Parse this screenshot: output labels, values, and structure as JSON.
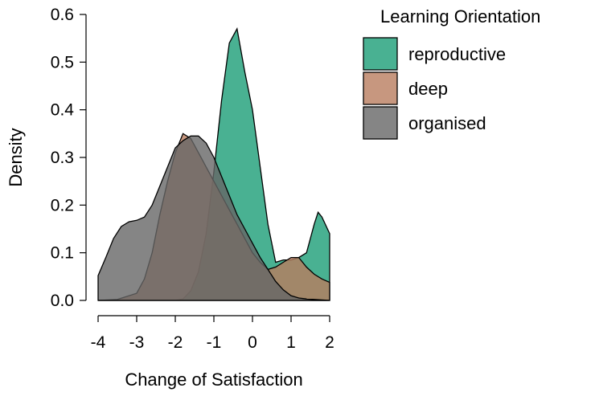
{
  "chart_data": {
    "type": "area",
    "xlabel": "Change of Satisfaction",
    "ylabel": "Density",
    "xlim": [
      -4,
      2
    ],
    "ylim": [
      0,
      0.6
    ],
    "xticks": [
      -4,
      -3,
      -2,
      -1,
      0,
      1,
      2
    ],
    "yticks": [
      0.0,
      0.1,
      0.2,
      0.3,
      0.4,
      0.5,
      0.6
    ],
    "xtick_labels": [
      "-4",
      "-3",
      "-2",
      "-1",
      "0",
      "1",
      "2"
    ],
    "ytick_labels": [
      "0.0",
      "0.1",
      "0.2",
      "0.3",
      "0.4",
      "0.5",
      "0.6"
    ],
    "grid": false,
    "legend": {
      "title": "Learning Orientation",
      "placement": "right"
    },
    "series": [
      {
        "name": "reproductive",
        "color": "#1b9e77",
        "x": [
          -4.0,
          -3.5,
          -3.0,
          -2.5,
          -2.0,
          -1.8,
          -1.6,
          -1.4,
          -1.2,
          -1.0,
          -0.8,
          -0.6,
          -0.4,
          -0.2,
          0.0,
          0.2,
          0.4,
          0.6,
          0.8,
          1.0,
          1.2,
          1.4,
          1.6,
          1.7,
          1.8,
          2.0
        ],
        "y": [
          0.0,
          0.0,
          0.0,
          0.0,
          0.0,
          0.003,
          0.02,
          0.06,
          0.14,
          0.27,
          0.42,
          0.54,
          0.57,
          0.48,
          0.4,
          0.28,
          0.16,
          0.08,
          0.085,
          0.085,
          0.09,
          0.1,
          0.16,
          0.185,
          0.175,
          0.14
        ]
      },
      {
        "name": "deep",
        "color": "#b97d5f",
        "x": [
          -4.0,
          -3.5,
          -3.0,
          -2.8,
          -2.6,
          -2.4,
          -2.2,
          -2.0,
          -1.8,
          -1.6,
          -1.4,
          -1.2,
          -1.0,
          -0.8,
          -0.6,
          -0.4,
          -0.2,
          0.0,
          0.2,
          0.4,
          0.6,
          0.8,
          1.0,
          1.2,
          1.4,
          1.6,
          1.8,
          2.0
        ],
        "y": [
          0.0,
          0.002,
          0.015,
          0.045,
          0.1,
          0.18,
          0.25,
          0.31,
          0.35,
          0.34,
          0.31,
          0.28,
          0.25,
          0.22,
          0.19,
          0.16,
          0.13,
          0.1,
          0.08,
          0.065,
          0.07,
          0.08,
          0.09,
          0.09,
          0.07,
          0.055,
          0.045,
          0.038
        ]
      },
      {
        "name": "organised",
        "color": "#666666",
        "x": [
          -4.0,
          -3.8,
          -3.6,
          -3.4,
          -3.2,
          -3.0,
          -2.8,
          -2.6,
          -2.4,
          -2.2,
          -2.0,
          -1.8,
          -1.6,
          -1.4,
          -1.2,
          -1.0,
          -0.8,
          -0.6,
          -0.4,
          -0.2,
          0.0,
          0.2,
          0.4,
          0.6,
          0.8,
          1.0,
          1.2,
          1.4,
          1.6,
          1.8,
          2.0
        ],
        "y": [
          0.052,
          0.09,
          0.13,
          0.155,
          0.165,
          0.168,
          0.175,
          0.2,
          0.24,
          0.28,
          0.32,
          0.335,
          0.345,
          0.345,
          0.33,
          0.3,
          0.26,
          0.22,
          0.18,
          0.15,
          0.12,
          0.09,
          0.065,
          0.04,
          0.022,
          0.01,
          0.005,
          0.003,
          0.002,
          0.001,
          0.0
        ]
      }
    ]
  }
}
